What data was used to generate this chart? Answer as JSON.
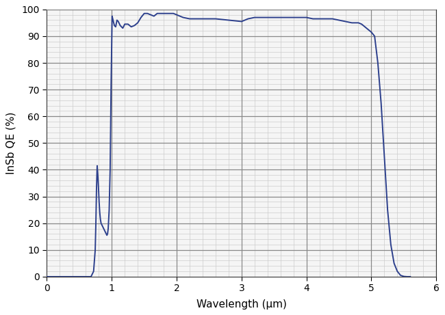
{
  "title": "",
  "xlabel": "Wavelength (μm)",
  "ylabel": "InSb QE (%)",
  "xlim": [
    0,
    6
  ],
  "ylim": [
    0,
    100
  ],
  "xticks": [
    0,
    1,
    2,
    3,
    4,
    5,
    6
  ],
  "yticks": [
    0,
    10,
    20,
    30,
    40,
    50,
    60,
    70,
    80,
    90,
    100
  ],
  "line_color": "#2c3f8c",
  "line_width": 1.4,
  "plot_bg_color": "#f5f5f5",
  "fig_bg_color": "#ffffff",
  "grid_major_color": "#aaaaaa",
  "grid_minor_color": "#cccccc",
  "grid_emphasis_color": "#888888",
  "x_data": [
    0.0,
    0.55,
    0.62,
    0.68,
    0.72,
    0.745,
    0.755,
    0.765,
    0.775,
    0.785,
    0.795,
    0.805,
    0.815,
    0.825,
    0.835,
    0.845,
    0.855,
    0.865,
    0.875,
    0.885,
    0.895,
    0.905,
    0.915,
    0.925,
    0.935,
    0.945,
    0.96,
    0.975,
    0.99,
    1.005,
    1.02,
    1.04,
    1.06,
    1.08,
    1.1,
    1.13,
    1.17,
    1.2,
    1.25,
    1.3,
    1.35,
    1.4,
    1.45,
    1.5,
    1.55,
    1.6,
    1.65,
    1.7,
    1.75,
    1.8,
    1.85,
    1.9,
    1.95,
    2.0,
    2.1,
    2.2,
    2.4,
    2.6,
    2.8,
    3.0,
    3.1,
    3.2,
    3.3,
    3.4,
    3.5,
    3.6,
    3.7,
    3.8,
    3.9,
    4.0,
    4.1,
    4.2,
    4.3,
    4.4,
    4.5,
    4.6,
    4.7,
    4.8,
    4.85,
    4.9,
    4.95,
    5.0,
    5.05,
    5.1,
    5.15,
    5.2,
    5.25,
    5.3,
    5.35,
    5.4,
    5.45,
    5.5,
    5.55,
    5.58,
    5.6
  ],
  "y_data": [
    0.0,
    0.0,
    0.0,
    0.0,
    2.0,
    10.0,
    20.0,
    33.0,
    41.5,
    38.0,
    33.5,
    28.0,
    24.0,
    21.5,
    20.0,
    19.5,
    19.0,
    18.5,
    18.0,
    17.5,
    17.0,
    16.5,
    16.0,
    15.5,
    16.0,
    18.0,
    25.0,
    40.0,
    72.0,
    97.5,
    96.0,
    94.0,
    93.5,
    96.0,
    95.5,
    94.0,
    93.0,
    94.5,
    94.5,
    93.5,
    94.0,
    95.0,
    97.0,
    98.5,
    98.5,
    98.0,
    97.5,
    98.5,
    98.5,
    98.5,
    98.5,
    98.5,
    98.5,
    98.0,
    97.0,
    96.5,
    96.5,
    96.5,
    96.0,
    95.5,
    96.5,
    97.0,
    97.0,
    97.0,
    97.0,
    97.0,
    97.0,
    97.0,
    97.0,
    97.0,
    96.5,
    96.5,
    96.5,
    96.5,
    96.0,
    95.5,
    95.0,
    95.0,
    94.5,
    93.5,
    92.5,
    91.5,
    90.0,
    80.0,
    65.0,
    45.0,
    25.0,
    12.0,
    5.0,
    2.0,
    0.5,
    0.1,
    0.0,
    0.0,
    0.0
  ]
}
